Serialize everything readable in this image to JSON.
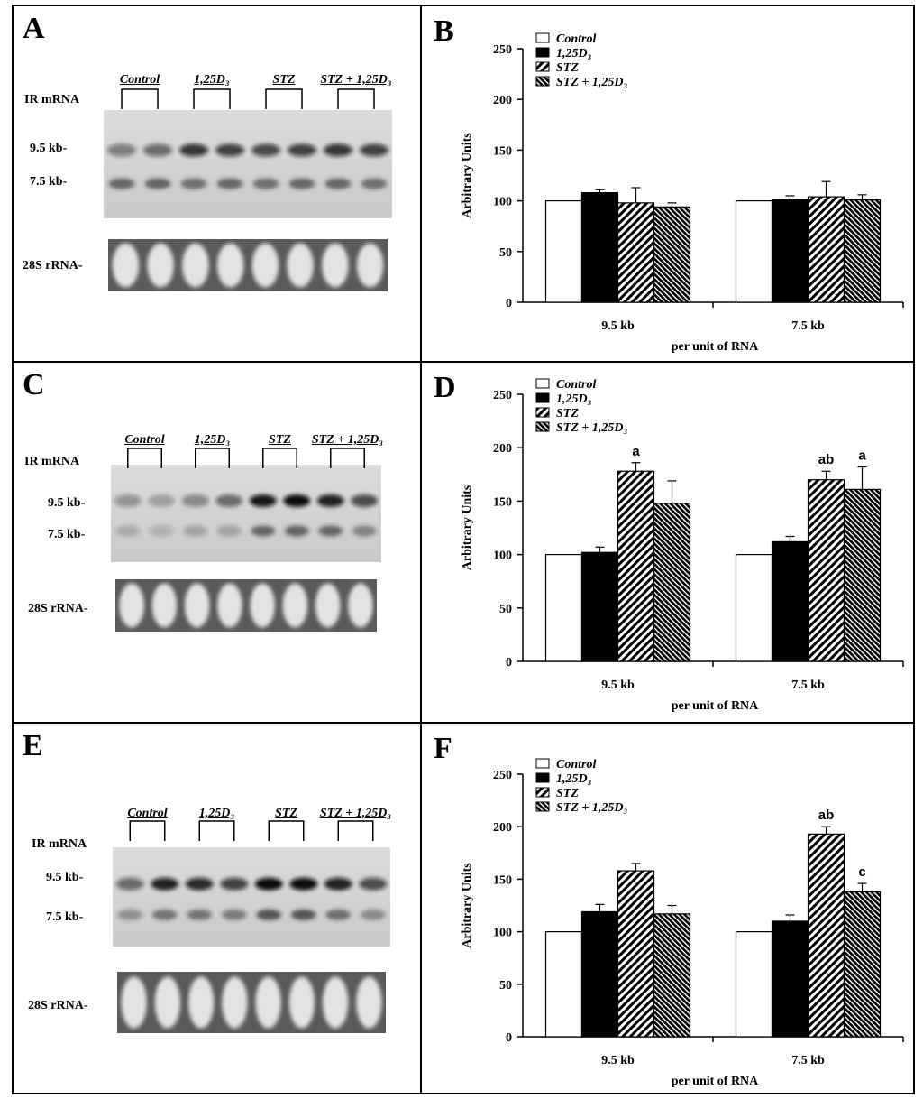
{
  "figure": {
    "blot_panels": [
      {
        "letter": "A",
        "group_labels": [
          "Control",
          "1,25D₃",
          "STZ",
          "STZ + 1,25D₃"
        ],
        "ir_label": "IR mRNA",
        "band_95": "9.5 kb-",
        "band_75": "7.5 kb-",
        "rrna_label": "28S rRNA-"
      },
      {
        "letter": "C",
        "group_labels": [
          "Control",
          "1,25D₃",
          "STZ",
          "STZ + 1,25D₃"
        ],
        "ir_label": "IR mRNA",
        "band_95": "9.5 kb-",
        "band_75": "7.5 kb-",
        "rrna_label": "28S rRNA-"
      },
      {
        "letter": "E",
        "group_labels": [
          "Control",
          "1,25D₃",
          "STZ",
          "STZ + 1,25D₃"
        ],
        "ir_label": "IR mRNA",
        "band_95": "9.5 kb-",
        "band_75": "7.5 kb-",
        "rrna_label": "28S rRNA-"
      }
    ]
  },
  "chart_data": [
    {
      "panel": "B",
      "type": "bar",
      "categories": [
        "9.5 kb",
        "7.5 kb"
      ],
      "xlabel": "per unit of RNA",
      "ylabel": "Arbitrary Units",
      "ylim": [
        0,
        250
      ],
      "yticks": [
        0,
        50,
        100,
        150,
        200,
        250
      ],
      "legend_position": "top-left",
      "series": [
        {
          "name": "Control",
          "fill": "white",
          "values": [
            100,
            100
          ],
          "errors": [
            0,
            0
          ],
          "labels": [
            "",
            ""
          ]
        },
        {
          "name": "1,25D₃",
          "fill": "black",
          "values": [
            108,
            101
          ],
          "errors": [
            3,
            4
          ],
          "labels": [
            "",
            ""
          ]
        },
        {
          "name": "STZ",
          "fill": "hatch-wide",
          "values": [
            98,
            104
          ],
          "errors": [
            15,
            15
          ],
          "labels": [
            "",
            ""
          ]
        },
        {
          "name": "STZ + 1,25D₃",
          "fill": "hatch-dense",
          "values": [
            94,
            101
          ],
          "errors": [
            4,
            5
          ],
          "labels": [
            "",
            ""
          ]
        }
      ]
    },
    {
      "panel": "D",
      "type": "bar",
      "categories": [
        "9.5 kb",
        "7.5 kb"
      ],
      "xlabel": "per unit of RNA",
      "ylabel": "Arbitrary Units",
      "ylim": [
        0,
        250
      ],
      "yticks": [
        0,
        50,
        100,
        150,
        200,
        250
      ],
      "legend_position": "top-left",
      "series": [
        {
          "name": "Control",
          "fill": "white",
          "values": [
            100,
            100
          ],
          "errors": [
            0,
            0
          ],
          "labels": [
            "",
            ""
          ]
        },
        {
          "name": "1,25D₃",
          "fill": "black",
          "values": [
            102,
            112
          ],
          "errors": [
            5,
            5
          ],
          "labels": [
            "",
            ""
          ]
        },
        {
          "name": "STZ",
          "fill": "hatch-wide",
          "values": [
            178,
            170
          ],
          "errors": [
            8,
            8
          ],
          "labels": [
            "a",
            "ab"
          ]
        },
        {
          "name": "STZ + 1,25D₃",
          "fill": "hatch-dense",
          "values": [
            148,
            161
          ],
          "errors": [
            21,
            21
          ],
          "labels": [
            "",
            "a"
          ]
        }
      ]
    },
    {
      "panel": "F",
      "type": "bar",
      "categories": [
        "9.5 kb",
        "7.5 kb"
      ],
      "xlabel": "per unit of RNA",
      "ylabel": "Arbitrary Units",
      "ylim": [
        0,
        250
      ],
      "yticks": [
        0,
        50,
        100,
        150,
        200,
        250
      ],
      "legend_position": "top-left",
      "series": [
        {
          "name": "Control",
          "fill": "white",
          "values": [
            100,
            100
          ],
          "errors": [
            0,
            0
          ],
          "labels": [
            "",
            ""
          ]
        },
        {
          "name": "1,25D₃",
          "fill": "black",
          "values": [
            119,
            110
          ],
          "errors": [
            7,
            6
          ],
          "labels": [
            "",
            ""
          ]
        },
        {
          "name": "STZ",
          "fill": "hatch-wide",
          "values": [
            158,
            193
          ],
          "errors": [
            7,
            7
          ],
          "labels": [
            "",
            "ab"
          ]
        },
        {
          "name": "STZ + 1,25D₃",
          "fill": "hatch-dense",
          "values": [
            117,
            138
          ],
          "errors": [
            8,
            8
          ],
          "labels": [
            "",
            "c"
          ]
        }
      ]
    }
  ]
}
